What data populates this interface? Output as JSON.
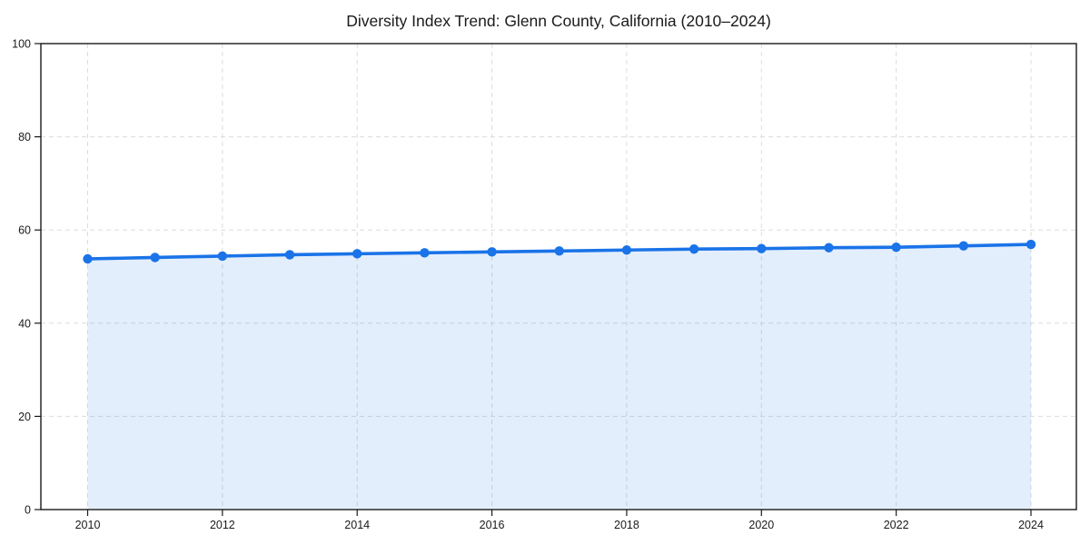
{
  "chart": {
    "title": "Diversity Index Trend: Glenn County, California (2010–2024)"
  },
  "colors": {
    "line": "#1a73e8",
    "marker": "#1a73e8",
    "fill": "#1a73e8",
    "fill_opacity": 0.12,
    "grid": "#dcdcdc",
    "axis": "#1a1a1a",
    "tick_label": "#1a1a1a",
    "background": "#ffffff"
  },
  "chart_data": {
    "type": "line",
    "title": "Diversity Index Trend: Glenn County, California (2010–2024)",
    "x": [
      2010,
      2011,
      2012,
      2013,
      2014,
      2015,
      2016,
      2017,
      2018,
      2019,
      2020,
      2021,
      2022,
      2023,
      2024
    ],
    "series": [
      {
        "name": "Diversity Index",
        "values": [
          53.8,
          54.1,
          54.4,
          54.7,
          54.9,
          55.1,
          55.3,
          55.5,
          55.7,
          55.9,
          56.0,
          56.2,
          56.3,
          56.6,
          56.9
        ]
      }
    ],
    "xlabel": "",
    "ylabel": "",
    "ylim": [
      0,
      100
    ],
    "yticks": [
      0,
      20,
      40,
      60,
      80,
      100
    ],
    "ytick_labels": [
      "0",
      "20",
      "40",
      "60",
      "80",
      "100"
    ],
    "xticks": [
      2010,
      2012,
      2014,
      2016,
      2018,
      2020,
      2022,
      2024
    ],
    "xtick_labels": [
      "2010",
      "2012",
      "2014",
      "2016",
      "2018",
      "2020",
      "2022",
      "2024"
    ],
    "grid": true,
    "grid_style": "dashed",
    "legend_position": "none",
    "marker": "circle",
    "area_fill": true
  }
}
